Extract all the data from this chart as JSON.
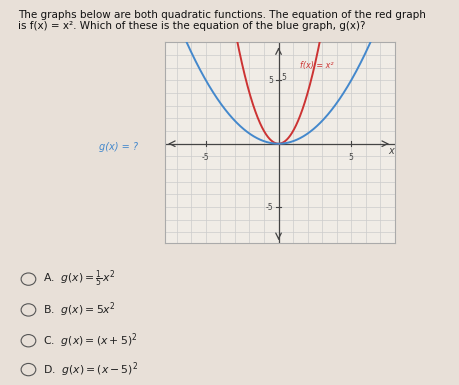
{
  "red_color": "#cc3333",
  "blue_color": "#4488cc",
  "axis_color": "#444444",
  "grid_color": "#cccccc",
  "background_color": "#e8e0d8",
  "plot_bg_color": "#f0ece6",
  "xlim": [
    -7,
    7
  ],
  "ylim": [
    -7,
    7
  ],
  "xtick_val": [
    -5,
    5
  ],
  "ytick_val": [
    5,
    -5
  ],
  "red_label": "f(x) = x²",
  "blue_label": "g(x) = ?",
  "x_axis_label": "x",
  "title_line1": "The graphs below are both quadratic functions. The equation of the red graph",
  "title_line2": "is f(x) = x². Which of these is the equation of the blue graph, g(x)?",
  "option_A": "A.  g(x) = ⅟x²",
  "option_B": "B.  g(x) = 5x²",
  "option_C": "C.  g(x) = (x + 5)²",
  "option_D": "D.  g(x) = (x − 5)²"
}
